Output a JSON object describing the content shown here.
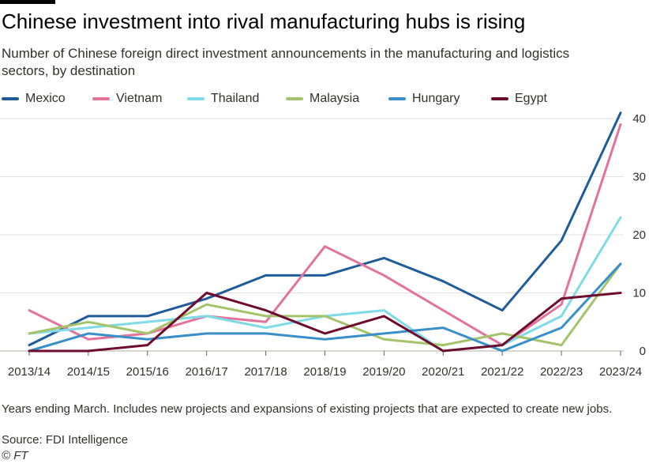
{
  "header": {
    "title": "Chinese investment into rival manufacturing hubs is rising",
    "subtitle": "Number of Chinese foreign direct investment announcements in the manufacturing and logistics sectors, by destination"
  },
  "footer": {
    "note": "Years ending March. Includes new projects and expansions of existing projects that are expected to create new jobs.",
    "source": "Source: FDI Intelligence",
    "copyright": "© FT"
  },
  "chart_data": {
    "type": "line",
    "title": "Chinese investment into rival manufacturing hubs is rising",
    "subtitle": "Number of Chinese foreign direct investment announcements in the manufacturing and logistics sectors, by destination",
    "xlabel": "",
    "ylabel": "",
    "ylim": [
      0,
      40
    ],
    "yticks": [
      0,
      10,
      20,
      30,
      40
    ],
    "y_axis_side": "right",
    "grid": "horizontal",
    "legend_position": "top",
    "categories": [
      "2013/14",
      "2014/15",
      "2015/16",
      "2016/17",
      "2017/18",
      "2018/19",
      "2019/20",
      "2020/21",
      "2021/22",
      "2022/23",
      "2023/24"
    ],
    "series": [
      {
        "name": "Mexico",
        "color": "#1f5c99",
        "values": [
          1,
          6,
          6,
          9,
          13,
          13,
          16,
          12,
          7,
          19,
          41
        ]
      },
      {
        "name": "Vietnam",
        "color": "#e3739b",
        "values": [
          7,
          2,
          3,
          6,
          5,
          18,
          13,
          7,
          1,
          8,
          39
        ]
      },
      {
        "name": "Thailand",
        "color": "#7fdbe8",
        "values": [
          3,
          4,
          5,
          6,
          4,
          6,
          7,
          0,
          1,
          6,
          23
        ]
      },
      {
        "name": "Malaysia",
        "color": "#a4c46b",
        "values": [
          3,
          5,
          3,
          8,
          6,
          6,
          2,
          1,
          3,
          1,
          15
        ]
      },
      {
        "name": "Hungary",
        "color": "#3a8fc8",
        "values": [
          0,
          3,
          2,
          3,
          3,
          2,
          3,
          4,
          0,
          4,
          15
        ]
      },
      {
        "name": "Egypt",
        "color": "#6e0c2e",
        "values": [
          0,
          0,
          1,
          10,
          7,
          3,
          6,
          0,
          1,
          9,
          10
        ]
      }
    ]
  }
}
